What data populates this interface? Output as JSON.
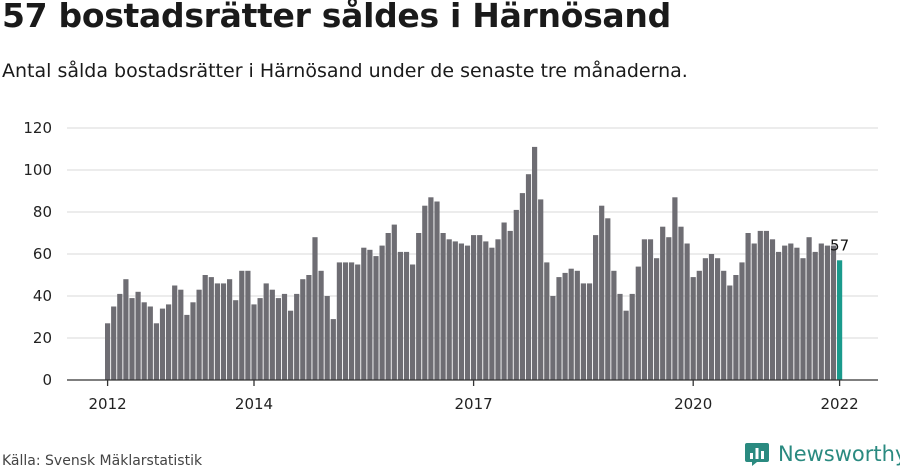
{
  "header": {
    "title": "57 bostadsrätter såldes i Härnösand",
    "subtitle": "Antal sålda bostadsrätter i Härnösand under de senaste tre månaderna."
  },
  "footer": {
    "source": "Källa: Svensk Mäklarstatistik",
    "brand": "Newsworthy"
  },
  "colors": {
    "bar": "#6e6d73",
    "highlight": "#1a9a8c",
    "grid": "#d9d9d9",
    "axis": "#333333"
  },
  "chart_data": {
    "type": "bar",
    "x_start": "2012-01",
    "x_step": "month",
    "ylim": [
      0,
      120
    ],
    "yticks": [
      0,
      20,
      40,
      60,
      80,
      100,
      120
    ],
    "xtick_labels": [
      "2012",
      "2014",
      "2017",
      "2020",
      "2022"
    ],
    "grid": true,
    "highlight_last": true,
    "last_value_label": "57",
    "values": [
      27,
      35,
      41,
      48,
      39,
      42,
      37,
      35,
      27,
      34,
      36,
      45,
      43,
      31,
      37,
      43,
      50,
      49,
      46,
      46,
      48,
      38,
      52,
      52,
      36,
      39,
      46,
      43,
      39,
      41,
      33,
      41,
      48,
      50,
      68,
      52,
      40,
      29,
      56,
      56,
      56,
      55,
      63,
      62,
      59,
      64,
      70,
      74,
      61,
      61,
      55,
      70,
      83,
      87,
      85,
      70,
      67,
      66,
      65,
      64,
      69,
      69,
      66,
      63,
      67,
      75,
      71,
      81,
      89,
      98,
      111,
      86,
      56,
      40,
      49,
      51,
      53,
      52,
      46,
      46,
      69,
      83,
      77,
      52,
      41,
      33,
      41,
      54,
      67,
      67,
      58,
      73,
      68,
      87,
      73,
      65,
      49,
      52,
      58,
      60,
      58,
      52,
      45,
      50,
      56,
      70,
      65,
      71,
      71,
      67,
      61,
      64,
      65,
      63,
      58,
      68,
      61,
      65,
      64,
      64,
      57
    ]
  }
}
